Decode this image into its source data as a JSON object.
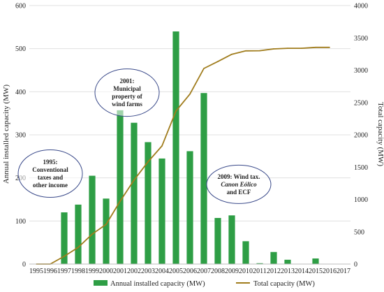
{
  "chart_data": {
    "type": "bar",
    "x": [
      "1995",
      "1996",
      "1997",
      "1998",
      "1999",
      "2000",
      "2001",
      "2002",
      "2003",
      "2004",
      "2005",
      "2006",
      "2007",
      "2008",
      "2009",
      "2010",
      "2011",
      "2012",
      "2013",
      "2014",
      "2015",
      "2016",
      "2017"
    ],
    "series": [
      {
        "name": "Annual installed capacity (MW)",
        "type": "bar",
        "axis": "left",
        "color": "#2e9e45",
        "values": [
          0,
          0,
          120,
          138,
          205,
          152,
          357,
          328,
          283,
          245,
          540,
          262,
          397,
          107,
          113,
          53,
          2,
          28,
          10,
          0,
          13,
          0,
          0
        ]
      },
      {
        "name": "Total capacity (MW)",
        "type": "line",
        "axis": "right",
        "color": "#a07c1c",
        "values": [
          0,
          0,
          120,
          258,
          463,
          615,
          972,
          1300,
          1583,
          1828,
          2368,
          2630,
          3027,
          3134,
          3247,
          3300,
          3302,
          3330,
          3340,
          3340,
          3353,
          3353,
          null
        ]
      }
    ],
    "ylabel": "Annual installed capacity (MW)",
    "y2label": "Total capacity (MW)",
    "ylim": [
      0,
      600
    ],
    "y2lim": [
      0,
      4000
    ],
    "yticks": [
      0,
      100,
      200,
      300,
      400,
      500,
      600
    ],
    "y2ticks": [
      0,
      500,
      1000,
      1500,
      2000,
      2500,
      3000,
      3500,
      4000
    ],
    "grid": true,
    "legend_position": "bottom",
    "annotations": [
      {
        "lines": [
          "1995:",
          "Conventional",
          "taxes and",
          "other income"
        ],
        "year": "1996",
        "value": 210
      },
      {
        "lines": [
          "2001:",
          "Municipal",
          "property of",
          "wind farms"
        ],
        "year": "2001.5",
        "value": 398
      },
      {
        "lines": [
          "2009: Wind tax.",
          "Canon Eólico",
          "and ECF"
        ],
        "year": "2009.5",
        "value": 185,
        "italic_line": 1
      }
    ]
  }
}
